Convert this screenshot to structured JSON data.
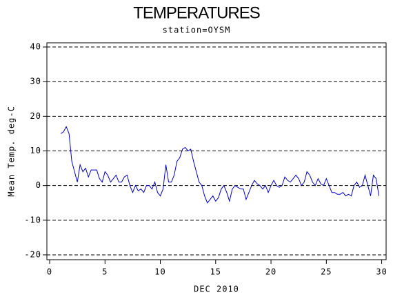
{
  "chart_data": {
    "type": "line",
    "title": "TEMPERATURES",
    "subtitle": "station=OYSM",
    "x_label": "DEC 2010",
    "y_label": "Mean Temp. deg-C",
    "xlim": [
      -0.25,
      30.4
    ],
    "ylim": [
      -21.4,
      41.2
    ],
    "xticks": [
      0,
      5,
      10,
      15,
      20,
      25,
      30
    ],
    "yticks": [
      -20,
      -10,
      0,
      10,
      20,
      30,
      40
    ],
    "grid": true,
    "x": [
      1,
      1.25,
      1.5,
      1.75,
      2,
      2.25,
      2.5,
      2.75,
      3,
      3.25,
      3.5,
      3.75,
      4,
      4.25,
      4.5,
      4.75,
      5,
      5.25,
      5.5,
      5.75,
      6,
      6.25,
      6.5,
      6.75,
      7,
      7.25,
      7.5,
      7.75,
      8,
      8.25,
      8.5,
      8.75,
      9,
      9.25,
      9.5,
      9.75,
      10,
      10.25,
      10.5,
      10.75,
      11,
      11.25,
      11.5,
      11.75,
      12,
      12.25,
      12.5,
      12.75,
      13,
      13.25,
      13.5,
      13.75,
      14,
      14.25,
      14.5,
      14.75,
      15,
      15.25,
      15.5,
      15.75,
      16,
      16.25,
      16.5,
      16.75,
      17,
      17.25,
      17.5,
      17.75,
      18,
      18.25,
      18.5,
      18.75,
      19,
      19.25,
      19.5,
      19.75,
      20,
      20.25,
      20.5,
      20.75,
      21,
      21.25,
      21.5,
      21.75,
      22,
      22.25,
      22.5,
      22.75,
      23,
      23.25,
      23.5,
      23.75,
      24,
      24.25,
      24.5,
      24.75,
      25,
      25.25,
      25.5,
      25.75,
      26,
      26.25,
      26.5,
      26.75,
      27,
      27.25,
      27.5,
      27.75,
      28,
      28.25,
      28.5,
      28.75,
      29,
      29.25,
      29.5,
      29.75
    ],
    "series": [
      {
        "color": "#0000cc",
        "values": [
          15,
          15.5,
          17,
          15,
          7,
          4,
          1,
          6,
          4,
          5,
          2.5,
          4.5,
          4.5,
          4.5,
          2,
          1,
          4,
          3,
          1,
          2,
          3,
          1,
          1,
          2.5,
          3,
          0,
          -2,
          0,
          -1.5,
          -1,
          -2,
          0,
          0,
          -1,
          1,
          -2,
          -3,
          -1,
          6,
          1,
          1,
          3,
          7,
          8,
          10.5,
          11,
          10,
          10.5,
          7,
          4,
          1,
          0,
          -3,
          -5,
          -4,
          -3,
          -4.5,
          -3.5,
          -1,
          0,
          -2,
          -4.5,
          -1,
          0,
          -0.5,
          -1,
          -1,
          -4,
          -2,
          0,
          1.5,
          0.5,
          0,
          -1,
          0,
          -2,
          0,
          1.5,
          0,
          -0.5,
          0,
          2.5,
          1.5,
          1,
          2,
          3,
          2,
          0,
          1,
          4,
          3,
          1,
          0,
          2,
          0.5,
          0,
          2,
          0,
          -2,
          -2,
          -2.5,
          -2.5,
          -2,
          -3,
          -2.5,
          -3,
          0,
          1,
          -0.5,
          0,
          3,
          0,
          -3,
          3,
          2,
          -3
        ]
      }
    ]
  }
}
